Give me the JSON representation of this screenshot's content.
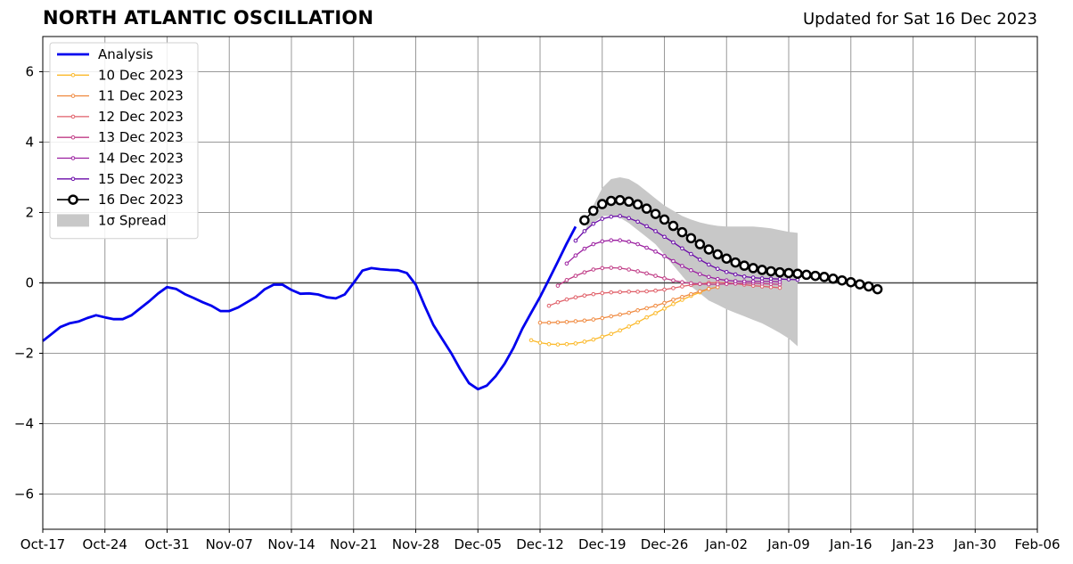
{
  "header": {
    "title": "NORTH ATLANTIC OSCILLATION",
    "updated": "Updated for Sat 16 Dec 2023"
  },
  "chart_data": {
    "type": "line",
    "title": "NORTH ATLANTIC OSCILLATION",
    "xlabel": "",
    "ylabel": "",
    "x_axis": {
      "type": "date",
      "start": "2023-10-17",
      "end": "2024-02-06",
      "tick_labels": [
        "Oct-17",
        "Oct-24",
        "Oct-31",
        "Nov-07",
        "Nov-14",
        "Nov-21",
        "Nov-28",
        "Dec-05",
        "Dec-12",
        "Dec-19",
        "Dec-26",
        "Jan-02",
        "Jan-09",
        "Jan-16",
        "Jan-23",
        "Jan-30",
        "Feb-06"
      ]
    },
    "ylim": [
      -7,
      7
    ],
    "yticks": [
      6,
      4,
      2,
      0,
      -2,
      -4,
      -6
    ],
    "grid": true,
    "legend_position": "top-left",
    "spread": {
      "name": "1σ Spread",
      "color": "#c8c8c8",
      "start_date": "2023-12-17",
      "upper": [
        1.4,
        2.2,
        2.7,
        2.95,
        3.0,
        2.95,
        2.8,
        2.6,
        2.4,
        2.2,
        2.05,
        1.9,
        1.8,
        1.72,
        1.66,
        1.62,
        1.6,
        1.6,
        1.6,
        1.6,
        1.58,
        1.55,
        1.5,
        1.45,
        1.42
      ],
      "lower": [
        1.4,
        1.7,
        1.9,
        1.9,
        1.85,
        1.7,
        1.5,
        1.3,
        1.1,
        0.8,
        0.5,
        0.2,
        -0.1,
        -0.3,
        -0.5,
        -0.62,
        -0.75,
        -0.85,
        -0.95,
        -1.05,
        -1.15,
        -1.28,
        -1.42,
        -1.58,
        -1.8
      ]
    },
    "analysis": {
      "name": "Analysis",
      "color": "#0000ee",
      "start_date": "2023-10-17",
      "values": [
        -1.65,
        -1.45,
        -1.25,
        -1.15,
        -1.1,
        -1.0,
        -0.92,
        -0.98,
        -1.03,
        -1.03,
        -0.92,
        -0.72,
        -0.52,
        -0.3,
        -0.12,
        -0.17,
        -0.32,
        -0.43,
        -0.55,
        -0.65,
        -0.8,
        -0.8,
        -0.7,
        -0.55,
        -0.4,
        -0.18,
        -0.05,
        -0.05,
        -0.2,
        -0.31,
        -0.3,
        -0.33,
        -0.41,
        -0.44,
        -0.33,
        0.0,
        0.35,
        0.42,
        0.39,
        0.37,
        0.36,
        0.28,
        -0.05,
        -0.65,
        -1.2,
        -1.6,
        -2.0,
        -2.45,
        -2.85,
        -3.02,
        -2.92,
        -2.65,
        -2.3,
        -1.85,
        -1.3,
        -0.85,
        -0.4,
        0.1,
        0.6,
        1.12,
        1.6
      ]
    },
    "forecasts": [
      {
        "name": "10 Dec 2023",
        "color": "#fbb92a",
        "start_date": "2023-12-11",
        "values": [
          -1.63,
          -1.7,
          -1.74,
          -1.75,
          -1.74,
          -1.72,
          -1.67,
          -1.61,
          -1.53,
          -1.45,
          -1.35,
          -1.24,
          -1.12,
          -0.98,
          -0.86,
          -0.73,
          -0.6,
          -0.48,
          -0.37,
          -0.27,
          -0.17
        ]
      },
      {
        "name": "11 Dec 2023",
        "color": "#f08a40",
        "start_date": "2023-12-12",
        "values": [
          -1.13,
          -1.13,
          -1.12,
          -1.11,
          -1.09,
          -1.07,
          -1.04,
          -1.0,
          -0.95,
          -0.9,
          -0.85,
          -0.78,
          -0.72,
          -0.65,
          -0.57,
          -0.48,
          -0.4,
          -0.32,
          -0.24,
          -0.17,
          -0.12
        ]
      },
      {
        "name": "12 Dec 2023",
        "color": "#e05f68",
        "start_date": "2023-12-13",
        "values": [
          -0.65,
          -0.55,
          -0.47,
          -0.41,
          -0.36,
          -0.32,
          -0.29,
          -0.27,
          -0.26,
          -0.25,
          -0.25,
          -0.24,
          -0.22,
          -0.19,
          -0.15,
          -0.1,
          -0.06,
          -0.03,
          0.0,
          0.01,
          0.0,
          -0.02,
          -0.05,
          -0.08,
          -0.1,
          -0.12,
          -0.14
        ]
      },
      {
        "name": "13 Dec 2023",
        "color": "#c03c86",
        "start_date": "2023-12-14",
        "values": [
          -0.08,
          0.08,
          0.2,
          0.3,
          0.38,
          0.42,
          0.43,
          0.42,
          0.38,
          0.33,
          0.27,
          0.2,
          0.13,
          0.07,
          0.02,
          -0.01,
          -0.03,
          -0.04,
          -0.04,
          -0.03,
          -0.02,
          -0.01,
          -0.01,
          -0.02,
          -0.03,
          -0.04
        ]
      },
      {
        "name": "14 Dec 2023",
        "color": "#9b1fa0",
        "start_date": "2023-12-15",
        "values": [
          0.55,
          0.78,
          0.97,
          1.1,
          1.18,
          1.21,
          1.21,
          1.17,
          1.1,
          1.0,
          0.89,
          0.76,
          0.62,
          0.48,
          0.36,
          0.25,
          0.17,
          0.11,
          0.07,
          0.05,
          0.04,
          0.04,
          0.04,
          0.04,
          0.03
        ]
      },
      {
        "name": "15 Dec 2023",
        "color": "#6a0aa8",
        "start_date": "2023-12-16",
        "values": [
          1.2,
          1.47,
          1.68,
          1.82,
          1.88,
          1.9,
          1.84,
          1.74,
          1.61,
          1.47,
          1.31,
          1.15,
          0.98,
          0.82,
          0.66,
          0.52,
          0.4,
          0.31,
          0.24,
          0.18,
          0.15,
          0.13,
          0.12,
          0.11,
          0.1,
          0.09
        ]
      },
      {
        "name": "16 Dec 2023",
        "color": "#000000",
        "marker_face": "#ffffff",
        "start_date": "2023-12-17",
        "values": [
          1.78,
          2.05,
          2.24,
          2.33,
          2.35,
          2.31,
          2.23,
          2.11,
          1.96,
          1.8,
          1.62,
          1.44,
          1.27,
          1.1,
          0.95,
          0.81,
          0.69,
          0.58,
          0.49,
          0.42,
          0.37,
          0.33,
          0.3,
          0.28,
          0.26,
          0.23,
          0.2,
          0.17,
          0.12,
          0.07,
          0.02,
          -0.04,
          -0.1,
          -0.18
        ]
      }
    ]
  }
}
